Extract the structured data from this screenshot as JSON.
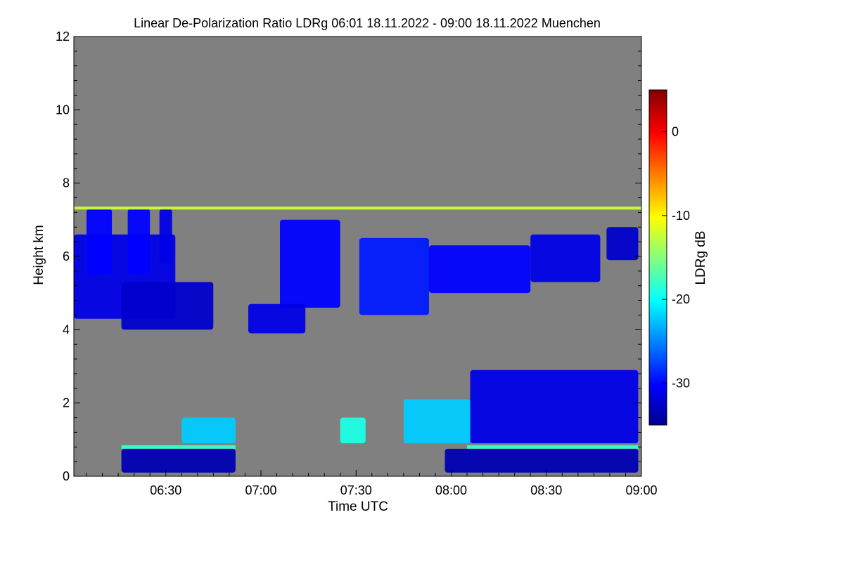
{
  "chart_data": {
    "type": "heatmap",
    "title": "Linear De-Polarization Ratio LDRg   06:01 18.11.2022 - 09:00 18.11.2022 Muenchen",
    "xlabel": "Time UTC",
    "ylabel": "Height km",
    "colorbar_label": "LDRg dB",
    "xlim_minutes_utc": [
      361,
      540
    ],
    "ylim_km": [
      0,
      12
    ],
    "x_ticks": [
      {
        "minute": 390,
        "label": "06:30"
      },
      {
        "minute": 420,
        "label": "07:00"
      },
      {
        "minute": 450,
        "label": "07:30"
      },
      {
        "minute": 480,
        "label": "08:00"
      },
      {
        "minute": 510,
        "label": "08:30"
      },
      {
        "minute": 540,
        "label": "09:00"
      }
    ],
    "y_ticks": [
      {
        "value": 0,
        "label": "0"
      },
      {
        "value": 2,
        "label": "2"
      },
      {
        "value": 4,
        "label": "4"
      },
      {
        "value": 6,
        "label": "6"
      },
      {
        "value": 8,
        "label": "8"
      },
      {
        "value": 10,
        "label": "10"
      },
      {
        "value": 12,
        "label": "12"
      }
    ],
    "colorbar_range_db": [
      -35,
      5
    ],
    "colorbar_ticks": [
      {
        "value": 0,
        "label": "0"
      },
      {
        "value": -10,
        "label": "-10"
      },
      {
        "value": -20,
        "label": "-20"
      },
      {
        "value": -30,
        "label": "-30"
      }
    ],
    "colormap": "jet",
    "no_signal_color": "#808080",
    "features": [
      {
        "name": "ice-cloud-1",
        "t0": 361,
        "t1": 393,
        "h0": 4.3,
        "h1": 6.6,
        "ldr": -31
      },
      {
        "name": "ice-cloud-1b",
        "t0": 376,
        "t1": 405,
        "h0": 4.0,
        "h1": 5.3,
        "ldr": -32
      },
      {
        "name": "fallstreak-1",
        "t0": 365,
        "t1": 373,
        "h0": 5.5,
        "h1": 7.3,
        "ldr": -30
      },
      {
        "name": "fallstreak-2",
        "t0": 378,
        "t1": 385,
        "h0": 5.5,
        "h1": 7.3,
        "ldr": -30
      },
      {
        "name": "fallstreak-3",
        "t0": 388,
        "t1": 392,
        "h0": 5.8,
        "h1": 7.3,
        "ldr": -31
      },
      {
        "name": "ice-cloud-2",
        "t0": 426,
        "t1": 445,
        "h0": 4.6,
        "h1": 7.0,
        "ldr": -30
      },
      {
        "name": "ice-cloud-2b",
        "t0": 416,
        "t1": 434,
        "h0": 3.9,
        "h1": 4.7,
        "ldr": -31
      },
      {
        "name": "ice-cloud-3",
        "t0": 451,
        "t1": 473,
        "h0": 4.4,
        "h1": 6.5,
        "ldr": -29
      },
      {
        "name": "ice-cloud-4",
        "t0": 473,
        "t1": 505,
        "h0": 5.0,
        "h1": 6.3,
        "ldr": -30
      },
      {
        "name": "ice-cloud-5",
        "t0": 505,
        "t1": 527,
        "h0": 5.3,
        "h1": 6.6,
        "ldr": -31
      },
      {
        "name": "ice-cloud-6",
        "t0": 529,
        "t1": 539,
        "h0": 5.9,
        "h1": 6.8,
        "ldr": -32
      },
      {
        "name": "melting-layer-1",
        "t0": 376,
        "t1": 412,
        "h0": 0.75,
        "h1": 0.85,
        "ldr": -18
      },
      {
        "name": "melting-layer-2",
        "t0": 485,
        "t1": 539,
        "h0": 0.75,
        "h1": 0.85,
        "ldr": -18
      },
      {
        "name": "rain-1",
        "t0": 376,
        "t1": 412,
        "h0": 0.1,
        "h1": 0.75,
        "ldr": -33
      },
      {
        "name": "rain-2",
        "t0": 478,
        "t1": 539,
        "h0": 0.1,
        "h1": 0.75,
        "ldr": -33
      },
      {
        "name": "low-cloud-1",
        "t0": 395,
        "t1": 412,
        "h0": 0.9,
        "h1": 1.6,
        "ldr": -22
      },
      {
        "name": "low-cloud-2",
        "t0": 445,
        "t1": 453,
        "h0": 0.9,
        "h1": 1.6,
        "ldr": -19
      },
      {
        "name": "low-cloud-3",
        "t0": 465,
        "t1": 486,
        "h0": 0.9,
        "h1": 2.1,
        "ldr": -22
      },
      {
        "name": "low-cloud-4",
        "t0": 486,
        "t1": 539,
        "h0": 0.9,
        "h1": 2.9,
        "ldr": -31
      },
      {
        "name": "top-noise-band",
        "t0": 361,
        "t1": 540,
        "h0": 7.28,
        "h1": 7.36,
        "ldr": -12
      }
    ]
  }
}
